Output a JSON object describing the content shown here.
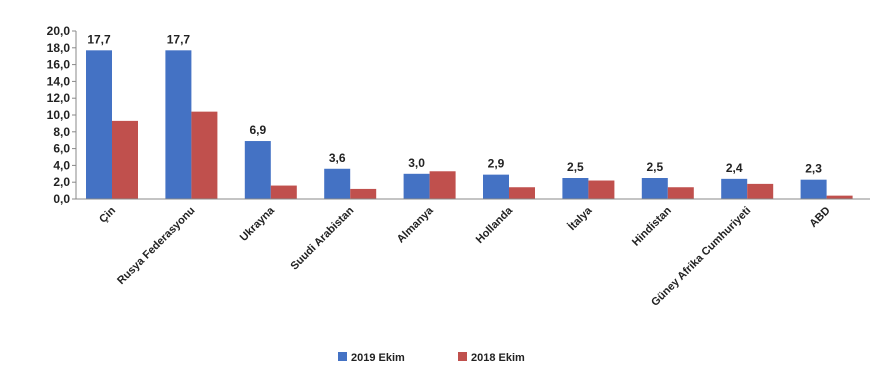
{
  "chart_data": {
    "type": "bar",
    "categories": [
      "Çin",
      "Rusya Federasyonu",
      "Ukrayna",
      "Suudi Arabistan",
      "Almanya",
      "Hollanda",
      "İtalya",
      "Hindistan",
      "Güney Afrika Cumhuriyeti",
      "ABD"
    ],
    "series": [
      {
        "name": "2019 Ekim",
        "color": "#4472C4",
        "values": [
          17.7,
          17.7,
          6.9,
          3.6,
          3.0,
          2.9,
          2.5,
          2.5,
          2.4,
          2.3
        ],
        "labels": [
          "17,7",
          "17,7",
          "6,9",
          "3,6",
          "3,0",
          "2,9",
          "2,5",
          "2,5",
          "2,4",
          "2,3"
        ]
      },
      {
        "name": "2018 Ekim",
        "color": "#C0504D",
        "values": [
          9.3,
          10.4,
          1.6,
          1.2,
          3.3,
          1.4,
          2.2,
          1.4,
          1.8,
          0.4
        ]
      }
    ],
    "ylim": [
      0,
      20
    ],
    "yticks": [
      "0,0",
      "2,0",
      "4,0",
      "6,0",
      "8,0",
      "10,0",
      "12,0",
      "14,0",
      "16,0",
      "18,0",
      "20,0"
    ],
    "legend_position": "bottom",
    "grid": false,
    "title": "",
    "xlabel": "",
    "ylabel": ""
  }
}
